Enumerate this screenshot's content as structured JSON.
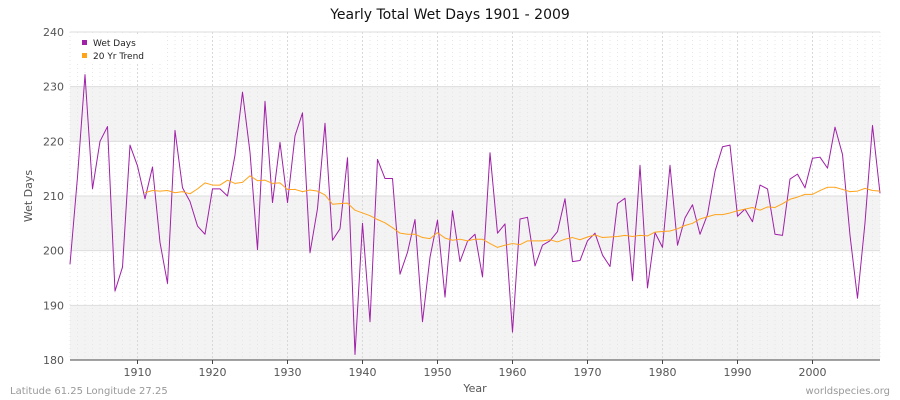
{
  "footer": {
    "location": "Latitude 61.25 Longitude 27.25",
    "source": "worldspecies.org"
  },
  "colors": {
    "wet_days": "#a020a8",
    "trend": "#ffa31a",
    "band_light": "#f3f3f3",
    "band_white": "#ffffff",
    "grid": "#dddddd"
  },
  "chart_data": {
    "type": "line",
    "title": "Yearly Total Wet Days 1901 - 2009",
    "xlabel": "Year",
    "ylabel": "Wet Days",
    "xlim": [
      1901,
      2009
    ],
    "ylim": [
      180,
      240
    ],
    "x_ticks": [
      1910,
      1920,
      1930,
      1940,
      1950,
      1960,
      1970,
      1980,
      1990,
      2000
    ],
    "y_ticks": [
      180,
      190,
      200,
      210,
      220,
      230,
      240
    ],
    "grid": true,
    "legend_position": "top-left",
    "series": [
      {
        "name": "Wet Days",
        "color": "#a020a8",
        "x_start": 1901,
        "values": [
          197.5,
          213.5,
          232.2,
          211.3,
          220.0,
          222.7,
          192.6,
          197.0,
          219.3,
          215.5,
          209.5,
          215.3,
          201.5,
          194.0,
          222.0,
          211.5,
          209.0,
          204.5,
          203.0,
          211.3,
          211.3,
          210.0,
          217.5,
          229.0,
          218.0,
          200.2,
          227.3,
          208.8,
          219.8,
          208.8,
          221.0,
          225.2,
          199.6,
          207.7,
          223.3,
          201.9,
          204.0,
          217.0,
          181.0,
          205.0,
          187.0,
          216.7,
          213.2,
          213.2,
          195.7,
          199.7,
          205.7,
          187.0,
          198.8,
          205.6,
          191.5,
          207.3,
          198.0,
          201.7,
          203.0,
          195.2,
          217.9,
          203.2,
          204.9,
          185.1,
          205.8,
          206.1,
          197.2,
          201.0,
          201.8,
          203.5,
          209.5,
          198.0,
          198.2,
          201.8,
          203.2,
          199.2,
          197.1,
          208.6,
          209.6,
          194.5,
          215.6,
          193.2,
          203.3,
          200.6,
          215.6,
          201.0,
          206.0,
          208.4,
          203.0,
          206.6,
          214.5,
          219.0,
          219.3,
          206.3,
          207.6,
          205.3,
          212.0,
          211.3,
          203.0,
          202.8,
          213.1,
          214.0,
          211.5,
          216.9,
          217.1,
          215.1,
          222.6,
          217.6,
          202.8,
          191.3,
          205.1,
          222.9,
          210.5
        ]
      },
      {
        "name": "20 Yr Trend",
        "color": "#ffa31a",
        "x_start": 1911,
        "values": [
          210.6,
          211.0,
          210.9,
          211.0,
          210.6,
          210.8,
          210.4,
          211.3,
          212.4,
          212.0,
          212.0,
          212.9,
          212.3,
          212.5,
          213.7,
          212.8,
          212.9,
          212.3,
          212.4,
          211.2,
          211.2,
          210.8,
          211.1,
          210.9,
          210.2,
          208.5,
          208.6,
          208.7,
          207.4,
          206.9,
          206.4,
          205.7,
          205.1,
          204.2,
          203.2,
          203.0,
          203.0,
          202.4,
          202.2,
          203.3,
          202.3,
          201.9,
          202.1,
          201.8,
          202.1,
          202.1,
          201.3,
          200.6,
          201.0,
          201.3,
          201.1,
          201.8,
          201.8,
          201.8,
          202.0,
          201.6,
          202.1,
          202.4,
          202.0,
          202.5,
          202.9,
          202.4,
          202.5,
          202.6,
          202.8,
          202.6,
          202.8,
          202.7,
          203.4,
          203.5,
          203.6,
          204.0,
          204.6,
          205.0,
          205.8,
          206.2,
          206.6,
          206.6,
          206.9,
          207.3,
          207.6,
          207.9,
          207.4,
          208.0,
          207.9,
          208.6,
          209.4,
          209.8,
          210.3,
          210.3,
          211.0,
          211.6,
          211.6,
          211.2,
          210.8,
          210.9,
          211.4,
          211.0,
          210.9
        ]
      }
    ]
  }
}
